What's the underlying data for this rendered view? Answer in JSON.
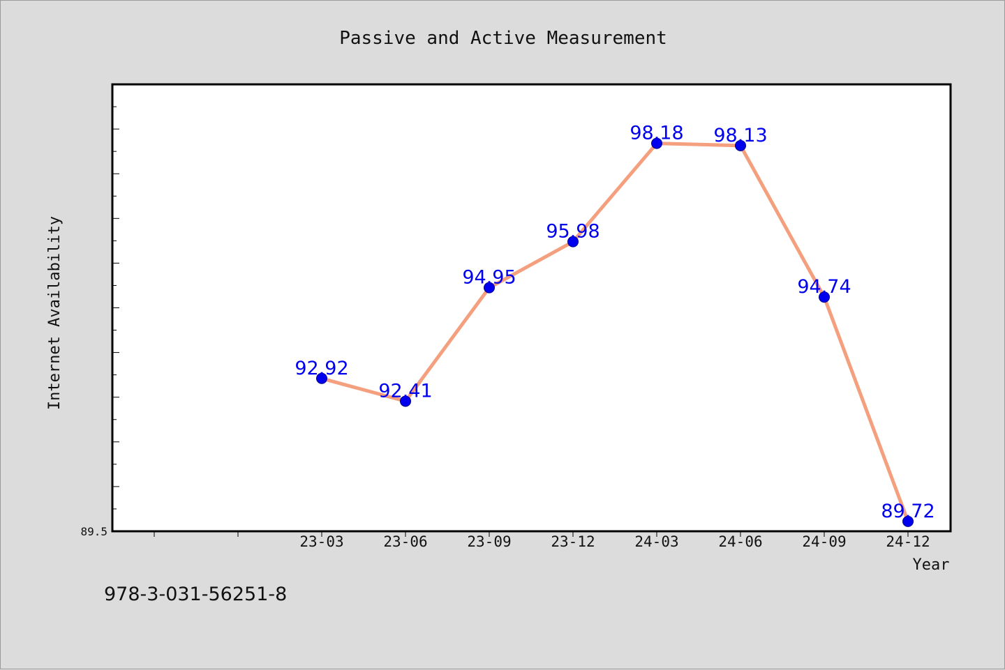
{
  "chart_data": {
    "type": "line",
    "title": "Passive and Active Measurement",
    "xlabel": "Year",
    "ylabel": "Internet Availability",
    "categories": [
      "23-03",
      "23-06",
      "23-09",
      "23-12",
      "24-03",
      "24-06",
      "24-09",
      "24-12"
    ],
    "values": [
      92.92,
      92.41,
      94.95,
      95.98,
      98.18,
      98.13,
      94.74,
      89.72
    ],
    "value_labels": [
      "92.92",
      "92.41",
      "94.95",
      "95.98",
      "98.18",
      "98.13",
      "94.74",
      "89.72"
    ],
    "y_tick_labels": [
      "89.5"
    ],
    "ylim": [
      89.5,
      99.5
    ],
    "grid": false,
    "line_color": "#f4a07e",
    "marker_color": "#0000ee",
    "label_color": "#0000ee"
  },
  "footer": {
    "code": "978-3-031-56251-8"
  }
}
